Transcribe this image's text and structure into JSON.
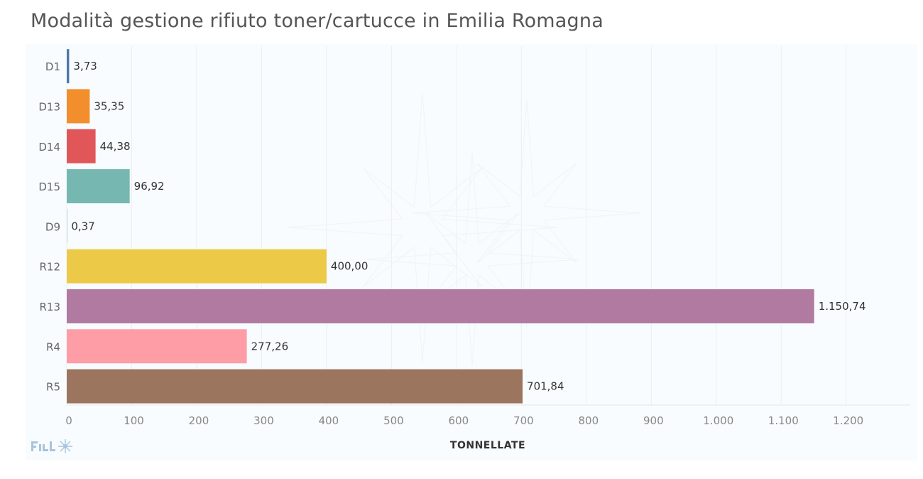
{
  "chart_data": {
    "type": "bar",
    "orientation": "horizontal",
    "title": "Modalità gestione rifiuto toner/cartucce in Emilia Romagna",
    "xlabel": "TONNELLATE",
    "ylabel": "",
    "categories": [
      "D1",
      "D13",
      "D14",
      "D15",
      "D9",
      "R12",
      "R13",
      "R4",
      "R5"
    ],
    "values": [
      3.73,
      35.35,
      44.38,
      96.92,
      0.37,
      400.0,
      1150.74,
      277.26,
      701.84
    ],
    "value_labels": [
      "3,73",
      "35,35",
      "44,38",
      "96,92",
      "0,37",
      "400,00",
      "1.150,74",
      "277,26",
      "701,84"
    ],
    "colors": [
      "#4e79a7",
      "#f28e2b",
      "#e15759",
      "#76b7b2",
      "#59a14f",
      "#edc948",
      "#b07aa1",
      "#ff9da7",
      "#9c755f"
    ],
    "xlim": [
      0,
      1300
    ],
    "xticks": [
      0,
      100,
      200,
      300,
      400,
      500,
      600,
      700,
      800,
      900,
      1000,
      1100,
      1200
    ],
    "xtick_labels": [
      "0",
      "100",
      "200",
      "300",
      "400",
      "500",
      "600",
      "700",
      "800",
      "900",
      "1.000",
      "1.100",
      "1.200"
    ],
    "grid": true,
    "legend": "none"
  }
}
